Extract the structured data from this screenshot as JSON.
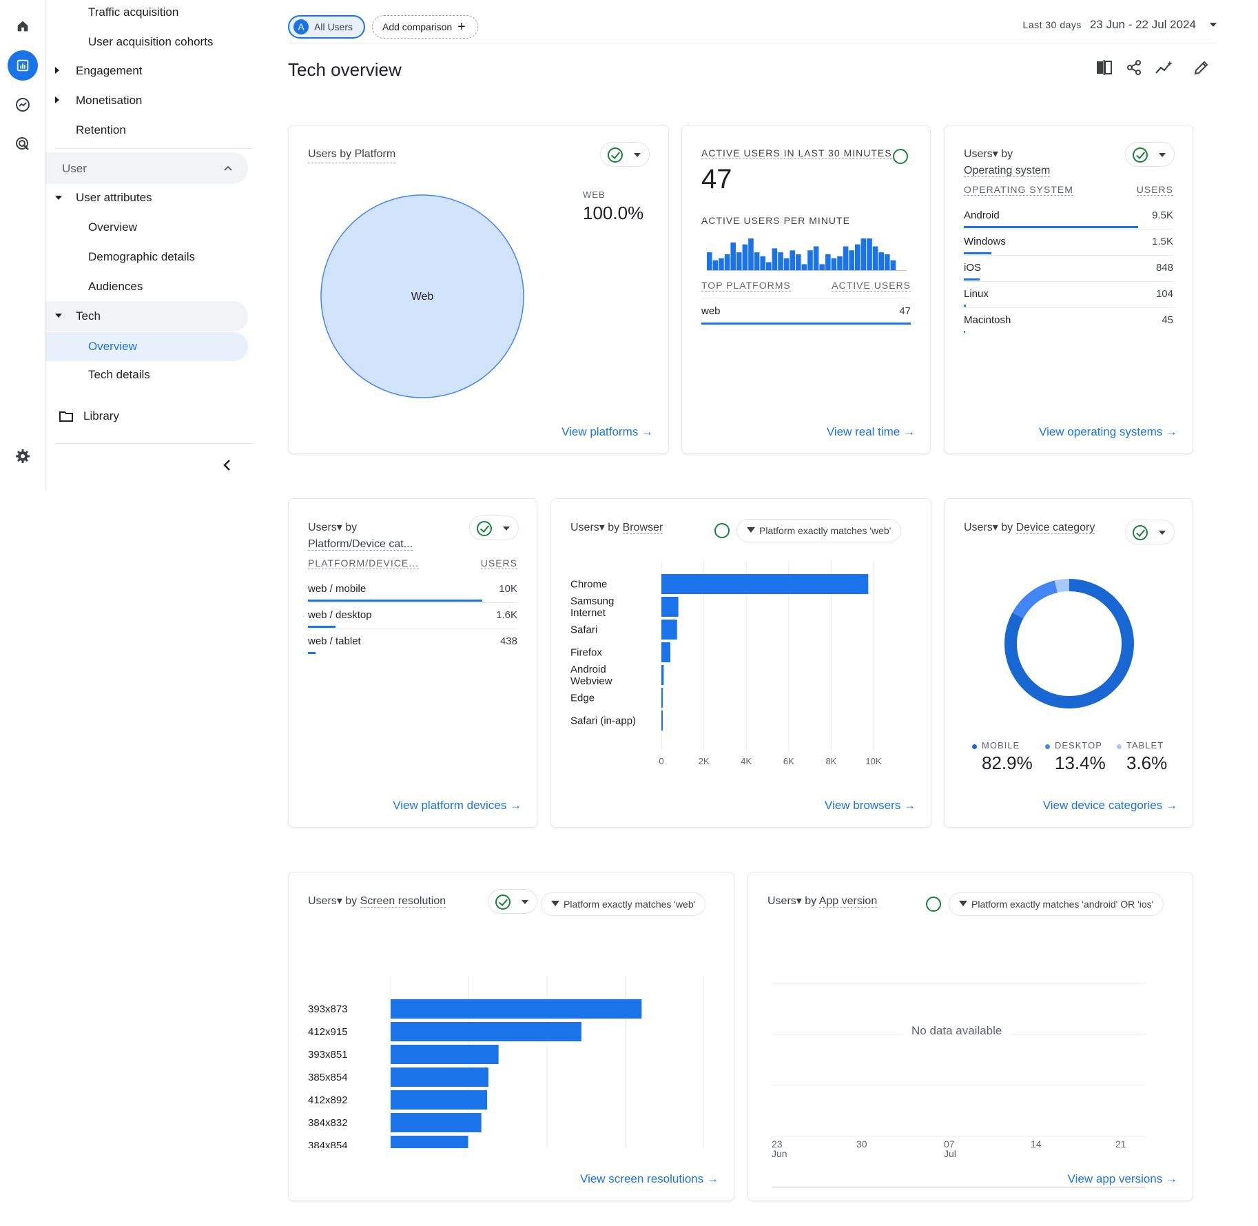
{
  "nav": {
    "items": [
      "Traffic acquisition",
      "User acquisition cohorts",
      "Engagement",
      "Monetisation",
      "Retention"
    ],
    "user_section": "User",
    "user_attributes": "User attributes",
    "ua_items": [
      "Overview",
      "Demographic details",
      "Audiences"
    ],
    "tech": "Tech",
    "tech_items": [
      "Overview",
      "Tech details"
    ],
    "library": "Library"
  },
  "topbar": {
    "segment_letter": "A",
    "segment": "All Users",
    "add_comparison": "Add comparison",
    "range_label": "Last 30 days",
    "range": "23 Jun - 22 Jul 2024"
  },
  "page_title": "Tech overview",
  "platform_card": {
    "title": "Users by Platform",
    "legend_label": "WEB",
    "legend_value": "100.0%",
    "slice_label": "Web",
    "link": "View platforms"
  },
  "realtime_card": {
    "title": "ACTIVE USERS IN LAST 30 MINUTES",
    "value": "47",
    "per_minute": "ACTIVE USERS PER MINUTE",
    "col1": "TOP PLATFORMS",
    "col2": "ACTIVE USERS",
    "row_label": "web",
    "row_value": "47",
    "link": "View real time",
    "minute_values": [
      9,
      5,
      6,
      8,
      14,
      9,
      13,
      16,
      9,
      7,
      4,
      11,
      9,
      6,
      10,
      8,
      3,
      10,
      12,
      3,
      8,
      6,
      7,
      12,
      10,
      13,
      16,
      16,
      12,
      9,
      8,
      5
    ]
  },
  "os_card": {
    "title_a": "Users",
    "title_b": "by",
    "title_c": "Operating system",
    "col1": "OPERATING SYSTEM",
    "col2": "USERS",
    "link": "View operating systems",
    "rows": [
      {
        "label": "Android",
        "value": "9.5K",
        "frac": 1
      },
      {
        "label": "Windows",
        "value": "1.5K",
        "frac": 0.16
      },
      {
        "label": "iOS",
        "value": "848",
        "frac": 0.09
      },
      {
        "label": "Linux",
        "value": "104",
        "frac": 0.011
      },
      {
        "label": "Macintosh",
        "value": "45",
        "frac": 0.005
      }
    ]
  },
  "platform_device_card": {
    "title_a": "Users",
    "title_b": "by",
    "title_c": "Platform/Device cat...",
    "col1": "PLATFORM/DEVICE...",
    "col2": "USERS",
    "link": "View platform devices",
    "rows": [
      {
        "label": "web / mobile",
        "value": "10K",
        "frac": 1
      },
      {
        "label": "web / desktop",
        "value": "1.6K",
        "frac": 0.16
      },
      {
        "label": "web / tablet",
        "value": "438",
        "frac": 0.044
      }
    ]
  },
  "browser_card": {
    "title_a": "Users",
    "title_b": "by",
    "title_c": "Browser",
    "filter": "Platform exactly matches 'web'",
    "link": "View browsers"
  },
  "device_card": {
    "title_a": "Users",
    "title_b": "by",
    "title_c": "Device category",
    "link": "View device categories",
    "legend": [
      {
        "label": "MOBILE",
        "value": "82.9%",
        "color": "#1967d2"
      },
      {
        "label": "DESKTOP",
        "value": "13.4%",
        "color": "#4285f4"
      },
      {
        "label": "TABLET",
        "value": "3.6%",
        "color": "#a8c7fa"
      }
    ]
  },
  "screen_card": {
    "title_a": "Users",
    "title_b": "by",
    "title_c": "Screen resolution",
    "filter": "Platform exactly matches 'web'",
    "link": "View screen resolutions"
  },
  "app_card": {
    "title_a": "Users",
    "title_b": "by",
    "title_c": "App version",
    "filter": "Platform exactly matches 'android' OR 'ios'",
    "empty": "No data available",
    "link": "View app versions",
    "xticks": [
      {
        "d": "23",
        "m": "Jun"
      },
      {
        "d": "30",
        "m": ""
      },
      {
        "d": "07",
        "m": "Jul"
      },
      {
        "d": "14",
        "m": ""
      },
      {
        "d": "21",
        "m": ""
      }
    ]
  },
  "chart_data": [
    {
      "type": "pie",
      "categories": [
        "Web"
      ],
      "values": [
        100.0
      ]
    },
    {
      "type": "bar",
      "orientation": "horizontal",
      "categories": [
        "Chrome",
        "Samsung Internet",
        "Safari",
        "Firefox",
        "Android Webview",
        "Edge",
        "Safari (in-app)"
      ],
      "values": [
        9750,
        800,
        740,
        420,
        110,
        70,
        35
      ],
      "xlim": [
        0,
        10000
      ],
      "xticks": [
        "0",
        "2K",
        "4K",
        "6K",
        "8K",
        "10K"
      ]
    },
    {
      "type": "pie",
      "donut": true,
      "categories": [
        "MOBILE",
        "DESKTOP",
        "TABLET"
      ],
      "values": [
        82.9,
        13.4,
        3.6
      ]
    },
    {
      "type": "bar",
      "orientation": "horizontal",
      "categories": [
        "393x873",
        "412x915",
        "393x851",
        "385x854",
        "412x892",
        "384x832",
        "384x854"
      ],
      "values": [
        1605,
        1220,
        690,
        625,
        617,
        580,
        495
      ],
      "xlim": [
        0,
        2000
      ],
      "xticks": [
        "0",
        "500",
        "1K",
        "1.5K",
        "2K"
      ]
    }
  ]
}
